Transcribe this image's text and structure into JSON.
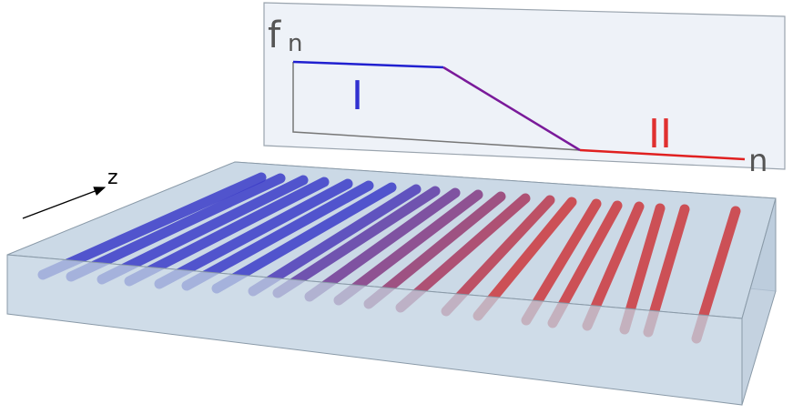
{
  "inset": {
    "y_label": "f",
    "y_label_sub": "n",
    "x_label": "n",
    "region_1": "I",
    "region_2": "II"
  },
  "axis": {
    "label": "z"
  }
}
